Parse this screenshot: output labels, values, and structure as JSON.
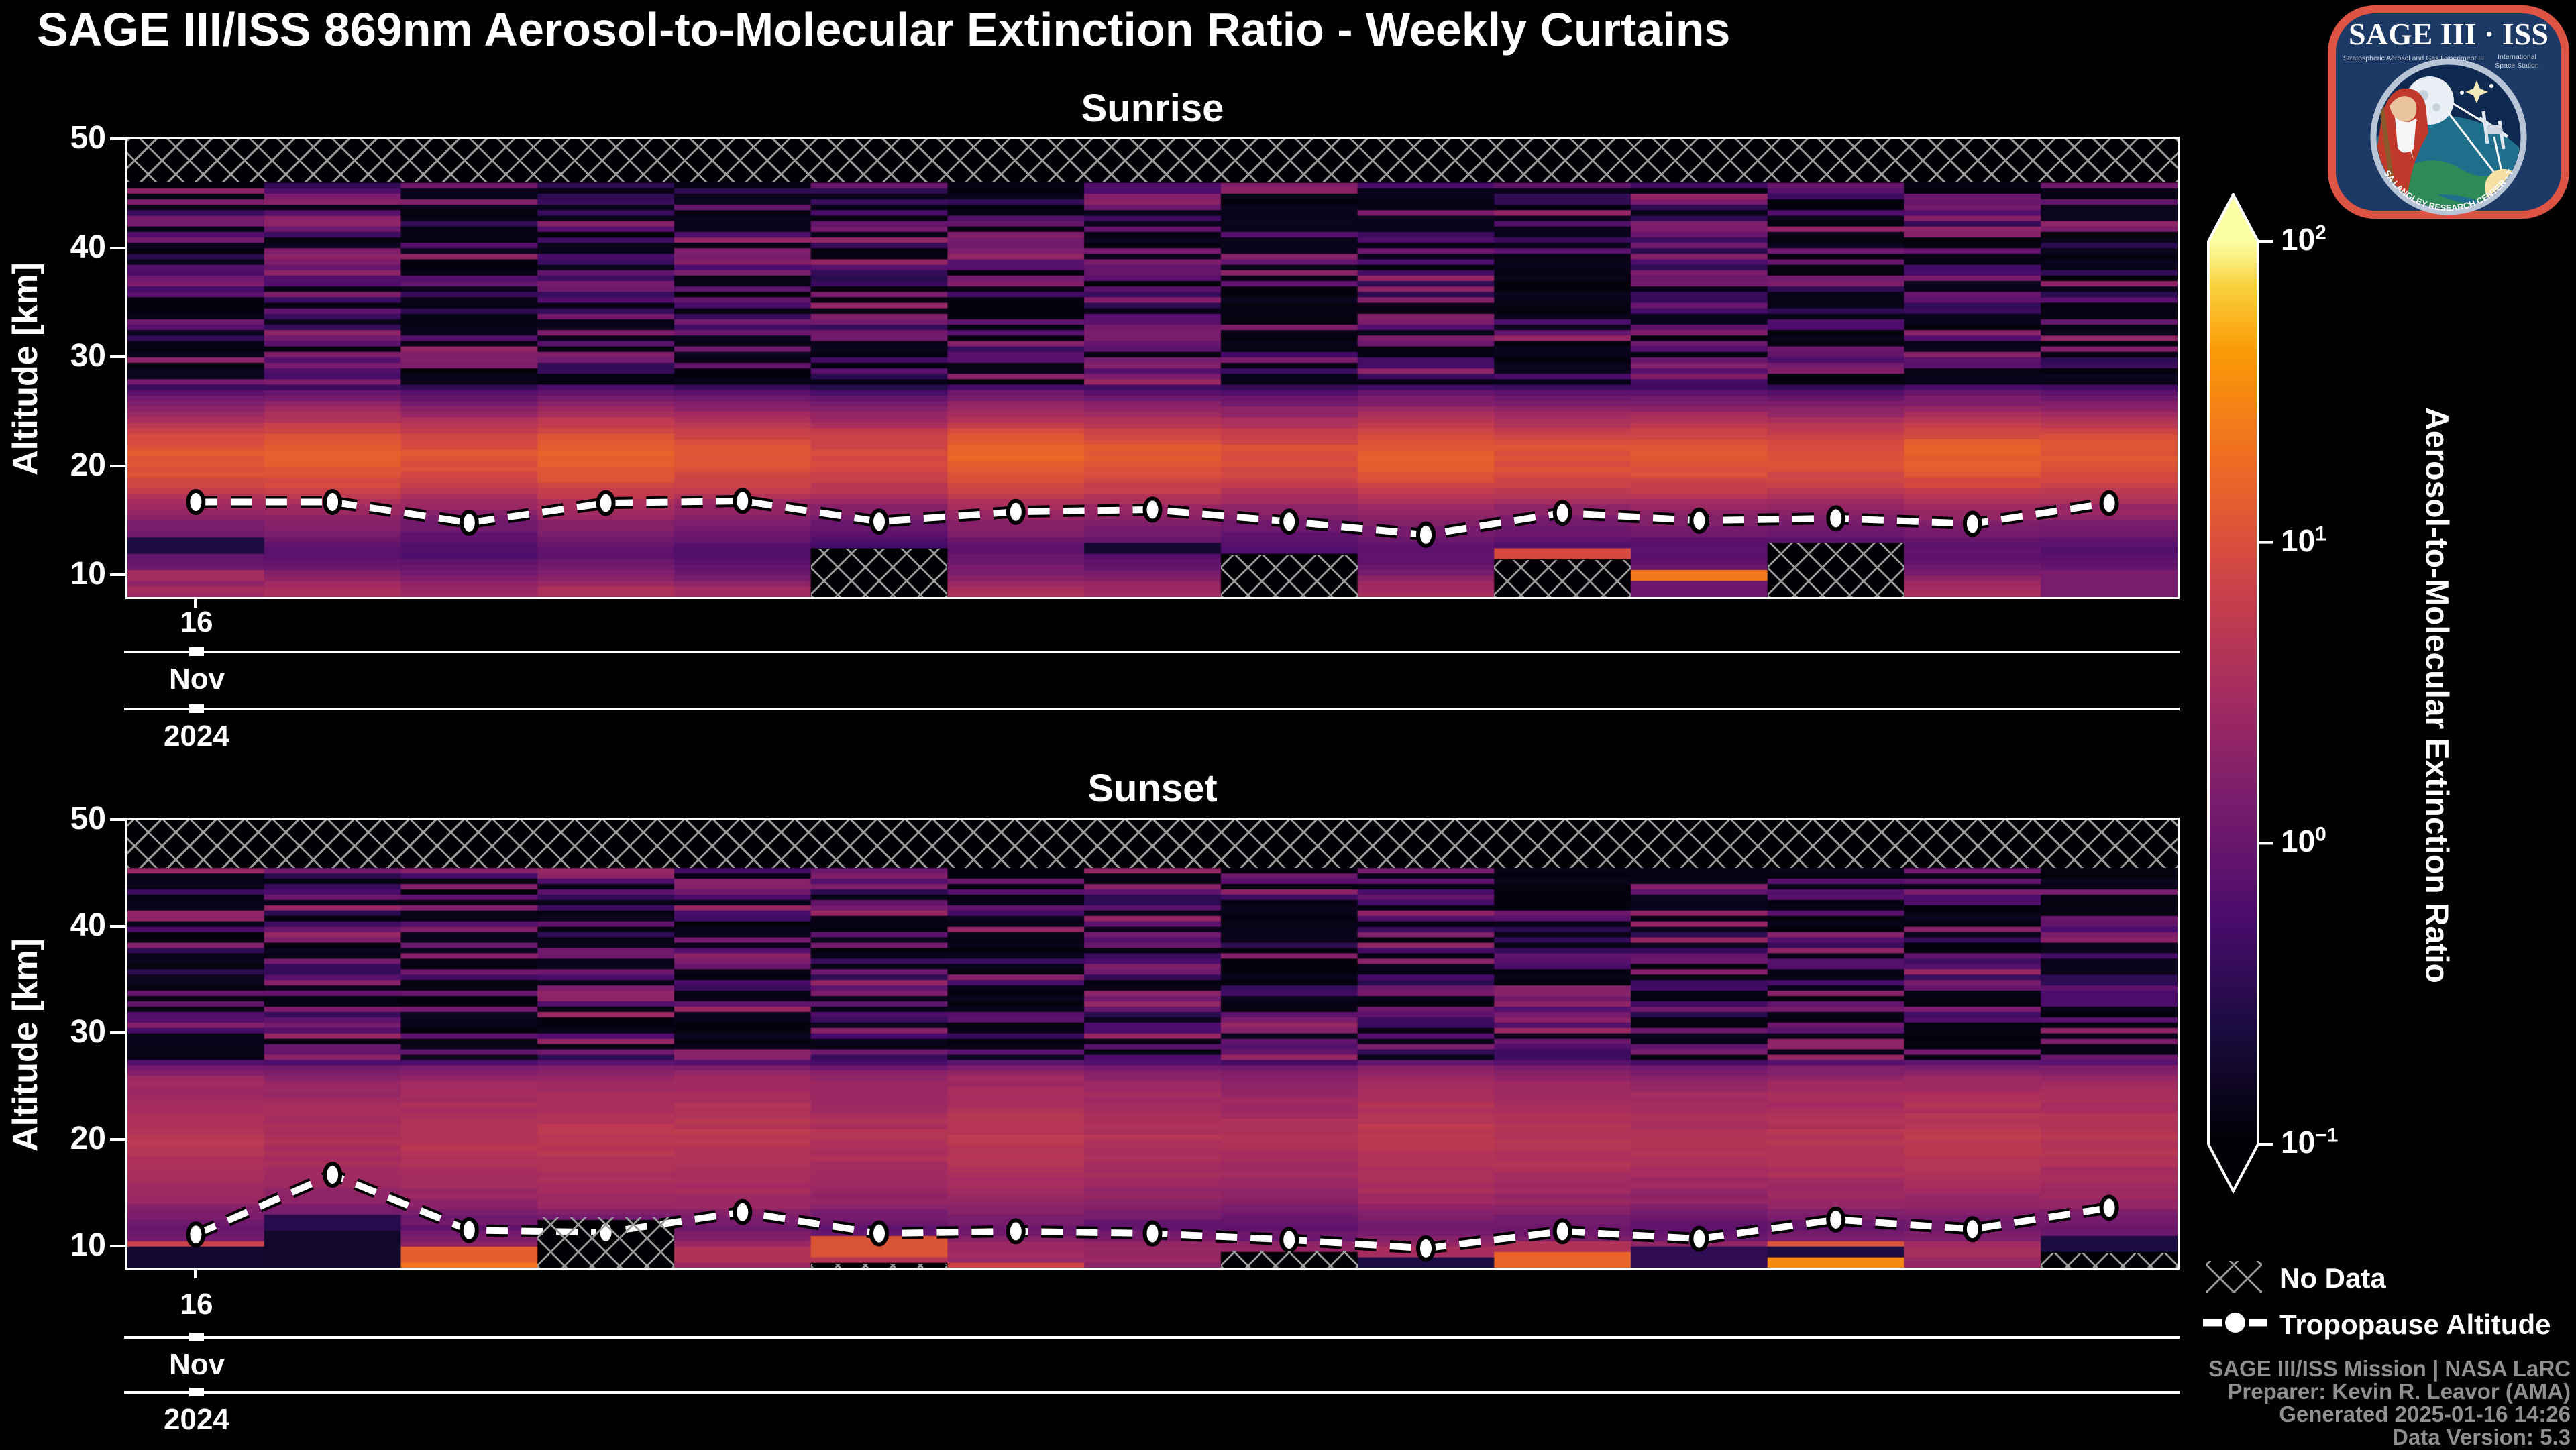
{
  "title": "SAGE III/ISS 869nm Aerosol-to-Molecular Extinction Ratio - Weekly Curtains",
  "logo": {
    "title": "SAGE III · ISS",
    "subtitle_left": "Stratospheric Aerosol and Gas Experiment III",
    "subtitle_right": "International Space Station",
    "ring_text": "BALL • NASA LANGLEY RESEARCH CENTER • TAS-I • ESA"
  },
  "legend": {
    "no_data_label": "No Data",
    "tropopause_label": "Tropopause Altitude"
  },
  "attribution": [
    "SAGE III/ISS Mission | NASA LaRC",
    "Preparer: Kevin R. Leavor (AMA)",
    "Generated 2025-01-16 14:26",
    "Data Version: 5.3"
  ],
  "chart_data": {
    "type": "heatmap",
    "colormap": "inferno",
    "colormap_stops": [
      [
        0,
        "#000004"
      ],
      [
        0.13,
        "#1b0c41"
      ],
      [
        0.25,
        "#4a0c6b"
      ],
      [
        0.38,
        "#781c6d"
      ],
      [
        0.5,
        "#a52c60"
      ],
      [
        0.63,
        "#cf4446"
      ],
      [
        0.75,
        "#ed6925"
      ],
      [
        0.88,
        "#fb9b06"
      ],
      [
        0.95,
        "#f7d13d"
      ],
      [
        1,
        "#fcffa4"
      ]
    ],
    "colorbar": {
      "label": "Aerosol-to-Molecular Extinction Ratio",
      "scale": "log",
      "range_log10": [
        -1,
        2
      ],
      "extend": "both",
      "ticks": [
        {
          "base": "10",
          "exp": "2"
        },
        {
          "base": "10",
          "exp": "1"
        },
        {
          "base": "10",
          "exp": "0"
        },
        {
          "base": "10",
          "exp": "−1"
        }
      ]
    },
    "x_axis": {
      "n_weeks": 15,
      "tick_week_index": 0,
      "tick_day": "16",
      "tick_month": "Nov",
      "tick_year": "2024"
    },
    "y_axis": {
      "label": "Altitude [km]",
      "units": "km",
      "ticks": [
        50,
        40,
        30,
        20,
        10
      ],
      "lim": [
        8,
        50
      ]
    },
    "panels": [
      {
        "title": "Sunrise",
        "no_data_top_km": [
          46,
          50
        ],
        "stripe_zone_km": [
          27.5,
          46
        ],
        "tropopause_km": [
          16.7,
          16.7,
          14.8,
          16.6,
          16.8,
          14.9,
          15.8,
          16.0,
          14.9,
          13.7,
          15.7,
          15.0,
          15.2,
          14.7,
          16.6
        ],
        "profile_log10": [
          [
            8.15,
            0.5
          ],
          [
            9.0,
            0.45
          ],
          [
            9.8,
            0.2
          ],
          [
            10.5,
            0.05
          ],
          [
            11.5,
            -0.1
          ],
          [
            12.5,
            -0.15
          ],
          [
            13.5,
            0.0
          ],
          [
            14.5,
            0.15
          ],
          [
            15.5,
            0.3
          ],
          [
            16.5,
            0.45
          ],
          [
            17.5,
            0.7
          ],
          [
            18.5,
            0.9
          ],
          [
            19.5,
            1.02
          ],
          [
            21.0,
            1.1
          ],
          [
            22.0,
            1.05
          ],
          [
            23.0,
            0.9
          ],
          [
            24.0,
            0.65
          ],
          [
            25.0,
            0.4
          ],
          [
            26.0,
            0.15
          ],
          [
            26.8,
            -0.1
          ],
          [
            27.5,
            -0.5
          ],
          [
            28.5,
            -0.75
          ],
          [
            30,
            -0.85
          ],
          [
            46,
            -0.9
          ]
        ],
        "columns": [
          {
            "seed": 101,
            "gain": 0,
            "stripes": 0.45,
            "hatch_from_km": null,
            "bands": [
              [
                11.8,
                13.4,
                -0.6
              ],
              [
                9.4,
                10.6,
                0.5
              ]
            ]
          },
          {
            "seed": 102,
            "gain": 0.06,
            "stripes": 0.7,
            "hatch_from_km": null,
            "bands": []
          },
          {
            "seed": 103,
            "gain": -0.05,
            "stripes": 0.5,
            "hatch_from_km": null,
            "bands": []
          },
          {
            "seed": 104,
            "gain": 0.08,
            "stripes": 0.62,
            "hatch_from_km": null,
            "bands": []
          },
          {
            "seed": 105,
            "gain": -0.04,
            "stripes": 0.42,
            "hatch_from_km": null,
            "bands": []
          },
          {
            "seed": 106,
            "gain": -0.12,
            "stripes": 0.6,
            "hatch_from_km": 12.4,
            "bands": []
          },
          {
            "seed": 107,
            "gain": 0.1,
            "stripes": 0.5,
            "hatch_from_km": null,
            "bands": []
          },
          {
            "seed": 108,
            "gain": 0,
            "stripes": 0.7,
            "hatch_from_km": null,
            "bands": [
              [
                11.8,
                12.9,
                -0.7
              ]
            ]
          },
          {
            "seed": 109,
            "gain": -0.08,
            "stripes": 0.45,
            "hatch_from_km": 11.8,
            "bands": []
          },
          {
            "seed": 110,
            "gain": 0.05,
            "stripes": 0.6,
            "hatch_from_km": null,
            "bands": []
          },
          {
            "seed": 111,
            "gain": -0.05,
            "stripes": 0.4,
            "hatch_from_km": 11.4,
            "bands": [
              [
                11.4,
                12.3,
                0.95
              ]
            ]
          },
          {
            "seed": 112,
            "gain": 0,
            "stripes": 0.66,
            "hatch_from_km": null,
            "bands": [
              [
                9.4,
                10.4,
                1.35
              ],
              [
                8.15,
                9.4,
                0.05
              ]
            ]
          },
          {
            "seed": 113,
            "gain": -0.06,
            "stripes": 0.5,
            "hatch_from_km": 13.0,
            "bands": []
          },
          {
            "seed": 114,
            "gain": 0.05,
            "stripes": 0.6,
            "hatch_from_km": null,
            "bands": []
          },
          {
            "seed": 115,
            "gain": 0,
            "stripes": 0.46,
            "hatch_from_km": null,
            "bands": [
              [
                8.15,
                10.5,
                0.15
              ]
            ]
          }
        ]
      },
      {
        "title": "Sunset",
        "no_data_top_km": [
          45.5,
          50
        ],
        "stripe_zone_km": [
          27.5,
          45.5
        ],
        "tropopause_km": [
          11.1,
          16.7,
          11.5,
          11.3,
          13.2,
          11.2,
          11.4,
          11.2,
          10.6,
          9.8,
          11.4,
          10.7,
          12.5,
          11.6,
          13.6
        ],
        "profile_log10": [
          [
            8.15,
            0.35
          ],
          [
            9.0,
            0.4
          ],
          [
            10.0,
            0.45
          ],
          [
            10.8,
            0.15
          ],
          [
            11.8,
            0.0
          ],
          [
            13.0,
            0.15
          ],
          [
            14.0,
            0.35
          ],
          [
            15.5,
            0.45
          ],
          [
            17.0,
            0.55
          ],
          [
            18.5,
            0.62
          ],
          [
            20.0,
            0.68
          ],
          [
            21.5,
            0.62
          ],
          [
            23.0,
            0.55
          ],
          [
            24.5,
            0.48
          ],
          [
            25.8,
            0.38
          ],
          [
            26.8,
            0.15
          ],
          [
            27.5,
            -0.35
          ],
          [
            28.5,
            -0.65
          ],
          [
            30,
            -0.8
          ],
          [
            46,
            -0.85
          ]
        ],
        "columns": [
          {
            "seed": 201,
            "gain": 0,
            "stripes": 0.5,
            "hatch_from_km": null,
            "bands": [
              [
                9.9,
                10.7,
                0.85
              ],
              [
                8.15,
                9.9,
                -0.7
              ]
            ]
          },
          {
            "seed": 202,
            "gain": -0.08,
            "stripes": 0.66,
            "hatch_from_km": null,
            "bands": [
              [
                11.5,
                13.1,
                -0.5
              ],
              [
                8.15,
                11.5,
                -0.75
              ]
            ]
          },
          {
            "seed": 203,
            "gain": 0,
            "stripes": 0.45,
            "hatch_from_km": null,
            "bands": [
              [
                8.3,
                9.9,
                1.15
              ],
              [
                8.15,
                8.3,
                1.35
              ]
            ]
          },
          {
            "seed": 204,
            "gain": 0.04,
            "stripes": 0.6,
            "hatch_from_km": 12.7,
            "bands": []
          },
          {
            "seed": 205,
            "gain": 0.05,
            "stripes": 0.5,
            "hatch_from_km": null,
            "bands": [
              [
                8.3,
                9.9,
                0.6
              ]
            ]
          },
          {
            "seed": 206,
            "gain": -0.05,
            "stripes": 0.68,
            "hatch_from_km": 8.35,
            "bands": [
              [
                9.0,
                10.9,
                1.05
              ],
              [
                8.35,
                9.0,
                0.65
              ]
            ]
          },
          {
            "seed": 207,
            "gain": 0.04,
            "stripes": 0.46,
            "hatch_from_km": null,
            "bands": [
              [
                8.15,
                8.5,
                0.9
              ]
            ]
          },
          {
            "seed": 208,
            "gain": -0.04,
            "stripes": 0.62,
            "hatch_from_km": null,
            "bands": []
          },
          {
            "seed": 209,
            "gain": -0.08,
            "stripes": 0.42,
            "hatch_from_km": 9.6,
            "bands": []
          },
          {
            "seed": 210,
            "gain": 0.06,
            "stripes": 0.64,
            "hatch_from_km": null,
            "bands": [
              [
                8.15,
                9.0,
                -0.6
              ]
            ]
          },
          {
            "seed": 211,
            "gain": 0,
            "stripes": 0.5,
            "hatch_from_km": null,
            "bands": [
              [
                9.4,
                10.4,
                0.6
              ],
              [
                8.15,
                9.4,
                1.2
              ]
            ]
          },
          {
            "seed": 212,
            "gain": -0.05,
            "stripes": 0.6,
            "hatch_from_km": null,
            "bands": [
              [
                8.15,
                9.8,
                -0.45
              ]
            ]
          },
          {
            "seed": 213,
            "gain": 0,
            "stripes": 0.46,
            "hatch_from_km": null,
            "bands": [
              [
                9.9,
                10.6,
                1.05
              ],
              [
                9.0,
                9.9,
                -0.6
              ],
              [
                8.15,
                9.0,
                1.5
              ]
            ]
          },
          {
            "seed": 214,
            "gain": 0.05,
            "stripes": 0.62,
            "hatch_from_km": null,
            "bands": []
          },
          {
            "seed": 215,
            "gain": 0,
            "stripes": 0.5,
            "hatch_from_km": 9.4,
            "bands": [
              [
                9.4,
                11.2,
                -0.6
              ]
            ]
          }
        ]
      }
    ]
  }
}
